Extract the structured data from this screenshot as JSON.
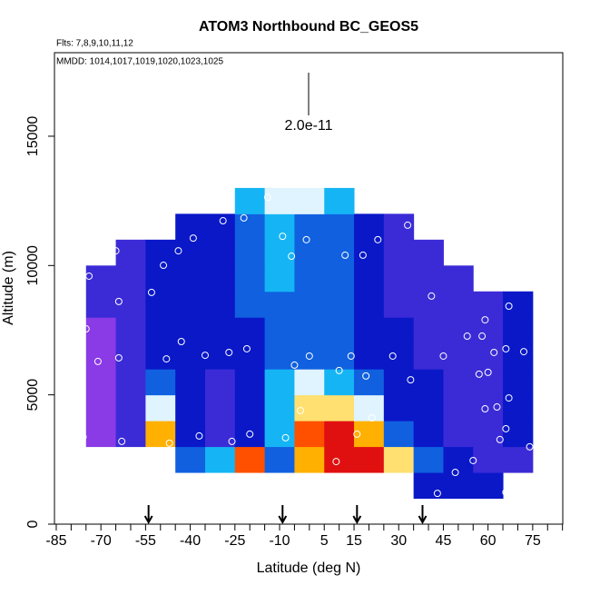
{
  "chart_data": {
    "type": "heatmap",
    "title": "ATOM3 Northbound BC_GEOS5",
    "subtitle": "Flts: 7,8,9,10,11,12",
    "annotation": "MMDD: 1014,1017,1019,1020,1023,1025",
    "scale_label": "2.0e-11",
    "x_label": "Latitude (deg N)",
    "y_label": "Altitude (m)",
    "xlim": [
      -85.6,
      85.1
    ],
    "ylim": [
      0,
      18230
    ],
    "xticks": [
      -85,
      -70,
      -55,
      -40,
      -25,
      -10,
      5,
      15,
      30,
      45,
      60,
      75
    ],
    "xminorticks": [
      -80,
      -75,
      -65,
      -60,
      -50,
      -45,
      -35,
      -30,
      -20,
      -15,
      -5,
      0,
      10,
      20,
      25,
      35,
      40,
      50,
      55,
      65,
      70,
      80,
      85
    ],
    "yticks": [
      0,
      5000,
      10000,
      15000
    ],
    "colorscale": [
      "#8a3be6",
      "#3b2bd6",
      "#0a18c8",
      "#1060e0",
      "#15b5f5",
      "#dff4ff",
      "#ffe070",
      "#ffb000",
      "#ff5000",
      "#e01010"
    ],
    "heatmap": {
      "lat_edges": [
        -75,
        -65,
        -55,
        -45,
        -35,
        -25,
        -15,
        -5,
        5,
        15,
        25,
        35,
        45,
        55,
        65,
        75
      ],
      "alt_edges": [
        1000,
        2000,
        3000,
        4000,
        5000,
        6000,
        7000,
        8000,
        9000,
        10000,
        11000,
        12000,
        13000
      ],
      "values": [
        [
          null,
          null,
          null,
          null,
          null,
          null,
          null,
          null,
          null,
          null,
          null,
          2,
          2,
          2,
          null
        ],
        [
          null,
          null,
          null,
          3,
          4,
          8,
          3,
          7,
          9,
          9,
          6,
          3,
          2,
          1,
          1
        ],
        [
          0,
          1,
          7,
          2,
          1,
          2,
          4,
          8,
          9,
          7,
          3,
          2,
          1,
          1,
          2
        ],
        [
          0,
          1,
          5,
          2,
          1,
          2,
          4,
          6,
          6,
          5,
          2,
          2,
          1,
          1,
          2
        ],
        [
          0,
          1,
          3,
          2,
          1,
          2,
          4,
          5,
          4,
          3,
          2,
          2,
          1,
          1,
          2
        ],
        [
          0,
          1,
          2,
          2,
          2,
          2,
          3,
          3,
          3,
          2,
          2,
          1,
          1,
          1,
          2
        ],
        [
          0,
          1,
          2,
          2,
          2,
          2,
          3,
          3,
          3,
          2,
          2,
          1,
          1,
          1,
          2
        ],
        [
          1,
          1,
          2,
          2,
          2,
          3,
          3,
          3,
          3,
          2,
          1,
          1,
          1,
          1,
          2
        ],
        [
          1,
          1,
          2,
          2,
          2,
          3,
          4,
          3,
          3,
          2,
          1,
          1,
          1,
          null,
          null
        ],
        [
          null,
          1,
          2,
          2,
          2,
          3,
          4,
          3,
          3,
          2,
          1,
          1,
          null,
          null,
          null
        ],
        [
          null,
          null,
          null,
          2,
          2,
          3,
          4,
          3,
          3,
          2,
          1,
          null,
          null,
          null,
          null
        ],
        [
          null,
          null,
          null,
          null,
          null,
          4,
          5,
          5,
          4,
          null,
          null,
          null,
          null,
          null,
          null
        ]
      ]
    },
    "points": {
      "x": [
        -78,
        -75,
        -74,
        -71,
        -65,
        -64,
        -64,
        -63,
        -76,
        -53,
        -49,
        -48,
        -47,
        -44,
        -43,
        -39,
        -37,
        -35,
        -29,
        -27,
        -26,
        -22,
        -21,
        -20,
        -14,
        -9,
        -8,
        -6,
        -5,
        -3,
        -1,
        0,
        9,
        10,
        12,
        14,
        16,
        18,
        19,
        21,
        23,
        28,
        33,
        34,
        41,
        43,
        45,
        49,
        53,
        55,
        57,
        58,
        59,
        60,
        59,
        62,
        63,
        64,
        66,
        66,
        66,
        67,
        67,
        72,
        74
      ],
      "y": [
        5440,
        7550,
        9590,
        6290,
        10570,
        8610,
        6430,
        3200,
        3370,
        8960,
        10010,
        6390,
        3130,
        10570,
        7060,
        11060,
        3410,
        6530,
        11730,
        6640,
        3200,
        11840,
        6780,
        3480,
        12640,
        11130,
        3340,
        10360,
        6150,
        4390,
        11000,
        6500,
        2420,
        5940,
        10400,
        6500,
        3480,
        10400,
        5730,
        4110,
        11000,
        6500,
        11560,
        5580,
        8820,
        1190,
        6500,
        2000,
        7270,
        2460,
        5800,
        7270,
        4460,
        5870,
        7900,
        6640,
        4530,
        3270,
        6780,
        3690,
        1230,
        4880,
        8430,
        6670,
        2990
      ]
    },
    "arrows_lat": [
      -54,
      -9,
      16,
      38
    ]
  }
}
